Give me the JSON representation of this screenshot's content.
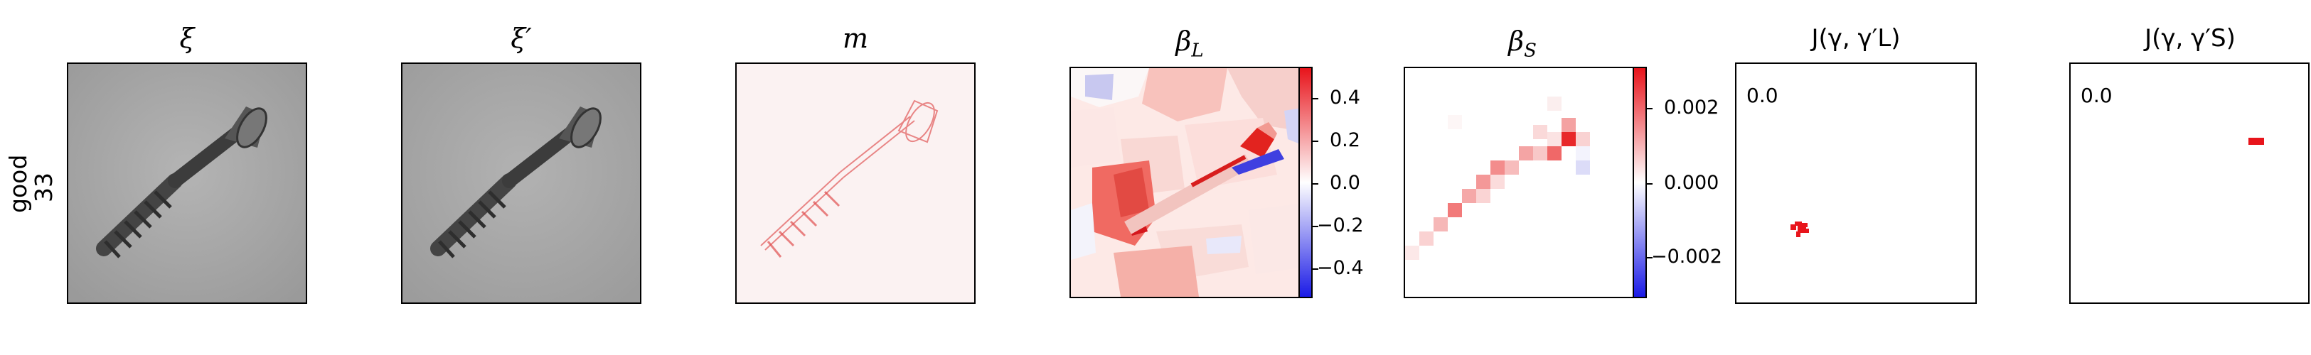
{
  "row_label": {
    "line1": "good",
    "line2": "33"
  },
  "panels": {
    "xi": {
      "title": "ξ"
    },
    "xi_p": {
      "title": "ξ′"
    },
    "m": {
      "title": "m"
    },
    "beta_l": {
      "title_main": "β",
      "title_sub": "L"
    },
    "beta_s": {
      "title_main": "β",
      "title_sub": "S"
    },
    "j_l": {
      "title": "J(γ, γ′L)",
      "value": "0.0"
    },
    "j_s": {
      "title": "J(γ, γ′S)",
      "value": "0.0"
    }
  },
  "colorbar_l": {
    "ticks": [
      "0.4",
      "0.2",
      "0.0",
      "−0.2",
      "−0.4"
    ]
  },
  "colorbar_s": {
    "ticks": [
      "0.002",
      "0.000",
      "−0.002"
    ]
  },
  "colors": {
    "positive": "#e8141b",
    "negative": "#1a1ae6",
    "neutral": "#ffffff"
  }
}
